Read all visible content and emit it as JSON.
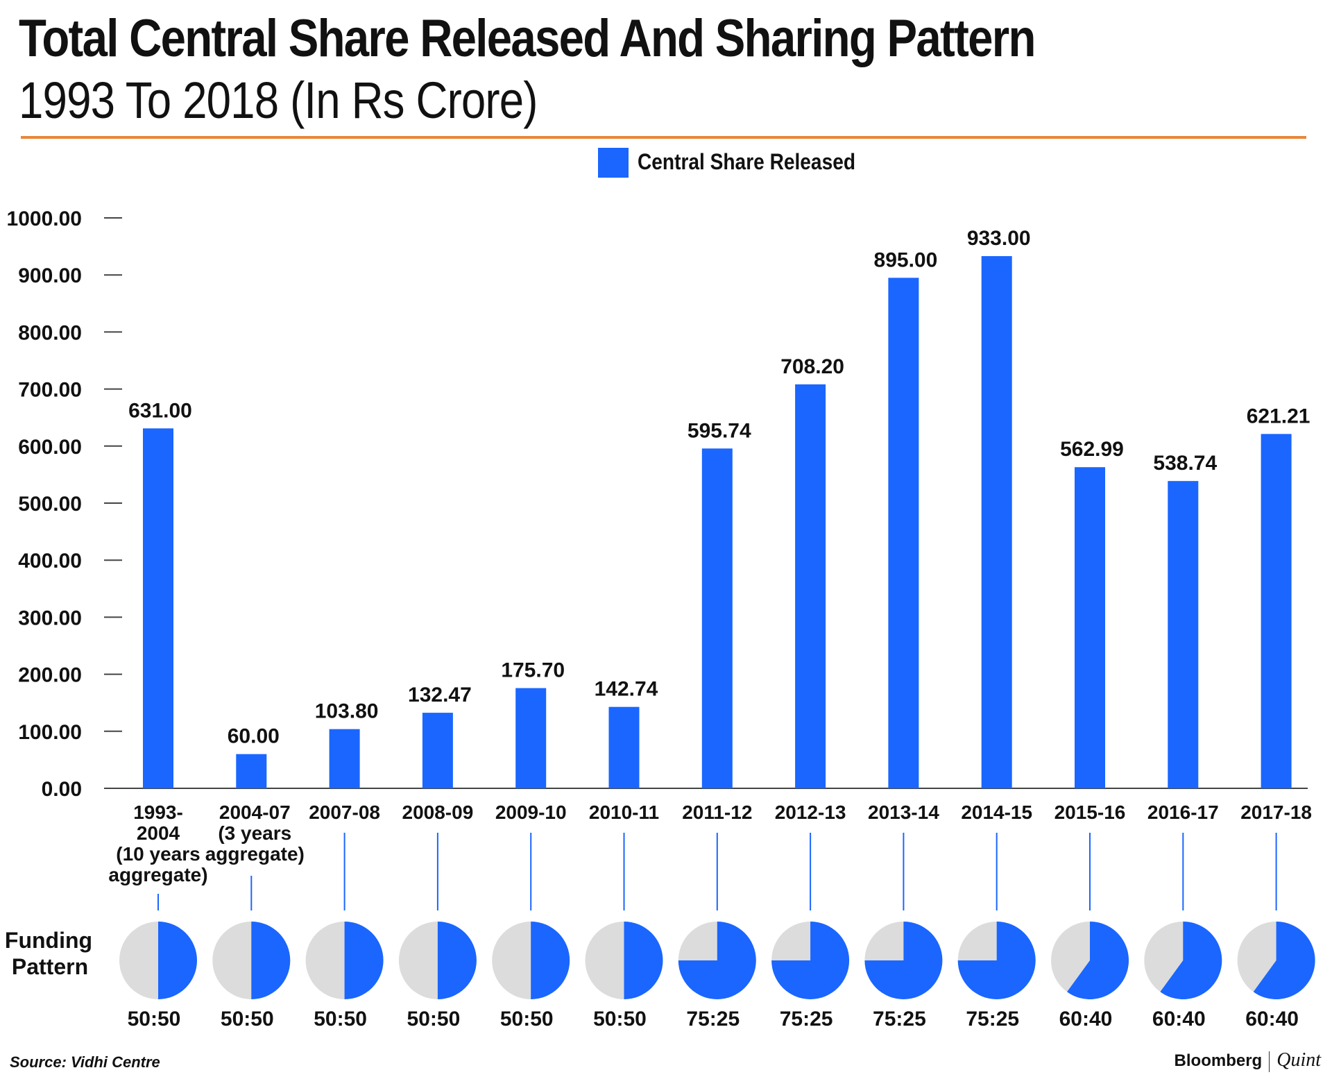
{
  "title": "Total Central Share Released And Sharing Pattern",
  "subtitle": "1993 To 2018 (In Rs Crore)",
  "source": "Source: Vidhi Centre",
  "brand": {
    "primary": "Bloomberg",
    "secondary": "Quint"
  },
  "colors": {
    "bar": "#1a66ff",
    "pie_rest": "#dcdcdc",
    "rule": "#e8873a"
  },
  "funding_label": [
    "Funding",
    "Pattern"
  ],
  "chart_data": {
    "type": "bar",
    "legend": "Central Share Released",
    "legend_position": "top-center",
    "ylim": [
      0,
      1000
    ],
    "yticks": [
      "0.00",
      "100.00",
      "200.00",
      "300.00",
      "400.00",
      "500.00",
      "600.00",
      "700.00",
      "800.00",
      "900.00",
      "1000.00"
    ],
    "categories": [
      [
        "1993-",
        "2004",
        "(10 years",
        "aggregate)"
      ],
      [
        "2004-07",
        "(3 years",
        "aggregate)"
      ],
      [
        "2007-08"
      ],
      [
        "2008-09"
      ],
      [
        "2009-10"
      ],
      [
        "2010-11"
      ],
      [
        "2011-12"
      ],
      [
        "2012-13"
      ],
      [
        "2013-14"
      ],
      [
        "2014-15"
      ],
      [
        "2015-16"
      ],
      [
        "2016-17"
      ],
      [
        "2017-18"
      ]
    ],
    "values": [
      631.0,
      60.0,
      103.8,
      132.47,
      175.7,
      142.74,
      595.74,
      708.2,
      895.0,
      933.0,
      562.99,
      538.74,
      621.21
    ],
    "value_labels": [
      "631.00",
      "60.00",
      "103.80",
      "132.47",
      "175.70",
      "142.74",
      "595.74",
      "708.20",
      "895.00",
      "933.00",
      "562.99",
      "538.74",
      "621.21"
    ],
    "funding_pattern": [
      "50:50",
      "50:50",
      "50:50",
      "50:50",
      "50:50",
      "50:50",
      "75:25",
      "75:25",
      "75:25",
      "75:25",
      "60:40",
      "60:40",
      "60:40"
    ],
    "central_share_pct": [
      50,
      50,
      50,
      50,
      50,
      50,
      75,
      75,
      75,
      75,
      60,
      60,
      60
    ]
  }
}
